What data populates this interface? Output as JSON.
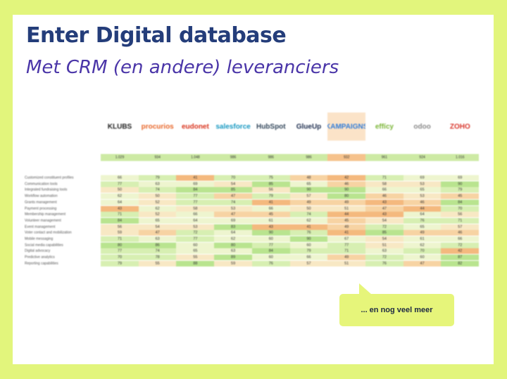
{
  "title": "Enter Digital database",
  "subtitle": "Met CRM (en andere) leveranciers",
  "callout": "... en nog veel meer",
  "vendors": [
    {
      "name": "KLUBS",
      "color": "#222222"
    },
    {
      "name": "procurios",
      "color": "#e8672a"
    },
    {
      "name": "eudonet",
      "color": "#d9341e"
    },
    {
      "name": "salesforce",
      "color": "#1798c1"
    },
    {
      "name": "HubSpot",
      "color": "#33475b"
    },
    {
      "name": "GlueUp",
      "color": "#1e2e4f"
    },
    {
      "name": "KAMPAIGNS",
      "color": "#2f7bd8"
    },
    {
      "name": "effícy",
      "color": "#7bb537"
    },
    {
      "name": "odoo",
      "color": "#8a8a8a"
    },
    {
      "name": "ZOHO",
      "color": "#d8342a"
    }
  ],
  "totals": [
    "1.029",
    "934",
    "1.048",
    "986",
    "986",
    "986",
    "932",
    "961",
    "924",
    "1.016"
  ],
  "features": [
    {
      "label": "Customized constituent profiles",
      "scores": [
        66,
        79,
        41,
        70,
        75,
        48,
        42,
        71,
        69,
        69
      ]
    },
    {
      "label": "Communication tools",
      "scores": [
        77,
        63,
        69,
        54,
        85,
        65,
        46,
        58,
        53,
        90
      ]
    },
    {
      "label": "Integrated fundraising tools",
      "scores": [
        50,
        74,
        84,
        85,
        56,
        90,
        90,
        66,
        65,
        79
      ]
    },
    {
      "label": "Workflow automation",
      "scores": [
        62,
        50,
        77,
        47,
        79,
        57,
        80,
        46,
        53,
        45
      ]
    },
    {
      "label": "Grants management",
      "scores": [
        64,
        52,
        77,
        74,
        41,
        49,
        49,
        43,
        46,
        84
      ]
    },
    {
      "label": "Payment processing",
      "scores": [
        43,
        62,
        58,
        53,
        66,
        50,
        51,
        47,
        44,
        70
      ]
    },
    {
      "label": "Membership management",
      "scores": [
        71,
        52,
        66,
        47,
        45,
        74,
        44,
        43,
        64,
        56
      ]
    },
    {
      "label": "Volunteer management",
      "scores": [
        84,
        65,
        64,
        69,
        61,
        62,
        45,
        54,
        76,
        71
      ]
    },
    {
      "label": "Event management",
      "scores": [
        56,
        54,
        53,
        83,
        43,
        41,
        49,
        72,
        65,
        57
      ]
    },
    {
      "label": "Voter contact and mobilization",
      "scores": [
        59,
        47,
        72,
        64,
        90,
        76,
        41,
        85,
        49,
        46
      ]
    },
    {
      "label": "Mobile messaging",
      "scores": [
        71,
        63,
        77,
        62,
        60,
        90,
        67,
        54,
        61,
        66
      ]
    },
    {
      "label": "Social media capabilities",
      "scores": [
        80,
        86,
        60,
        80,
        77,
        60,
        77,
        51,
        62,
        72
      ]
    },
    {
      "label": "Digital advocacy",
      "scores": [
        77,
        74,
        65,
        63,
        84,
        79,
        71,
        63,
        70,
        42
      ]
    },
    {
      "label": "Predictive analytics",
      "scores": [
        70,
        78,
        55,
        89,
        60,
        66,
        49,
        72,
        60,
        87
      ]
    },
    {
      "label": "Reporting capabilities",
      "scores": [
        79,
        55,
        88,
        59,
        76,
        57,
        51,
        76,
        47,
        82
      ]
    }
  ]
}
